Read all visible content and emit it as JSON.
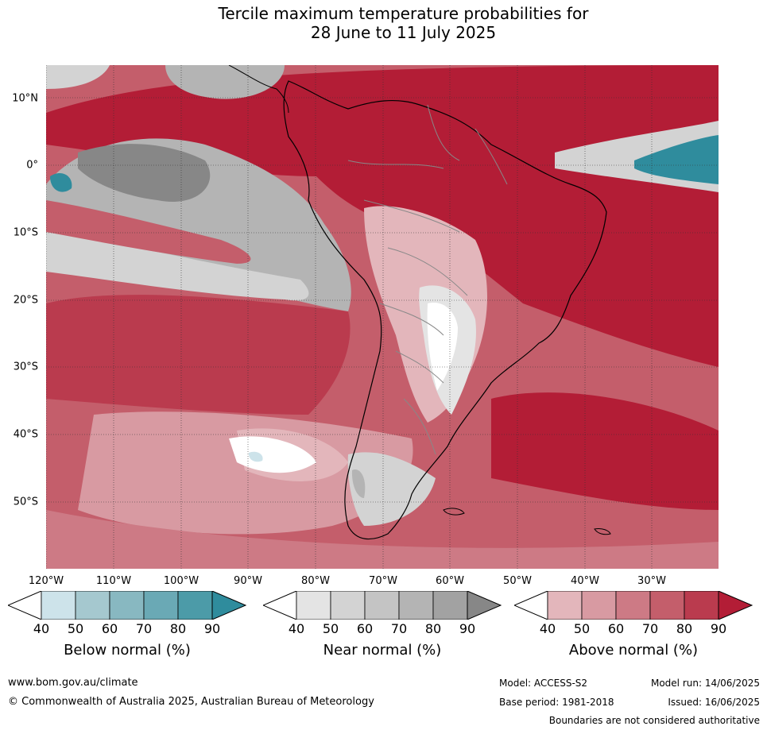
{
  "title_line1": "Tercile maximum temperature probabilities for",
  "title_line2": "28 June to 11 July 2025",
  "lat_labels": [
    "10°N",
    "0°",
    "10°S",
    "20°S",
    "30°S",
    "40°S",
    "50°S"
  ],
  "lon_labels": [
    "120°W",
    "110°W",
    "100°W",
    "90°W",
    "80°W",
    "70°W",
    "60°W",
    "50°W",
    "40°W",
    "30°W"
  ],
  "colorbars": [
    {
      "title": "Below normal (%)",
      "ticks": [
        "40",
        "50",
        "60",
        "70",
        "80",
        "90"
      ],
      "colors": [
        "#cde3ea",
        "#a5c8cf",
        "#88b8c1",
        "#6aa9b5",
        "#4c9ba8",
        "#2f8c9d"
      ]
    },
    {
      "title": "Near normal (%)",
      "ticks": [
        "40",
        "50",
        "60",
        "70",
        "80",
        "90"
      ],
      "colors": [
        "#e4e4e4",
        "#d3d3d3",
        "#c4c4c4",
        "#b4b4b4",
        "#a2a2a2",
        "#878787"
      ]
    },
    {
      "title": "Above normal (%)",
      "ticks": [
        "40",
        "50",
        "60",
        "70",
        "80",
        "90"
      ],
      "colors": [
        "#e3b6bb",
        "#d89aa2",
        "#cd7a85",
        "#c45e6b",
        "#ba3b4e",
        "#b31d36"
      ]
    }
  ],
  "map_colors": {
    "ocean_high": "#b31d36",
    "ocean_mid": "#c45e6b",
    "ocean_low": "#cd7a85",
    "light": "#d89aa2",
    "pale": "#e3b6bb",
    "grey_light": "#d3d3d3",
    "grey": "#b4b4b4",
    "grey_dark": "#878787",
    "teal": "#2f8c9d",
    "teal_light": "#88b8c1",
    "white": "#ffffff"
  },
  "footer": {
    "website": "www.bom.gov.au/climate",
    "copyright": "© Commonwealth of Australia 2025, Australian Bureau of Meteorology",
    "model": "Model: ACCESS-S2",
    "model_run": "Model run: 14/06/2025",
    "base_period": "Base period: 1981-2018",
    "issued": "Issued: 16/06/2025",
    "disclaimer": "Boundaries are not considered authoritative"
  }
}
